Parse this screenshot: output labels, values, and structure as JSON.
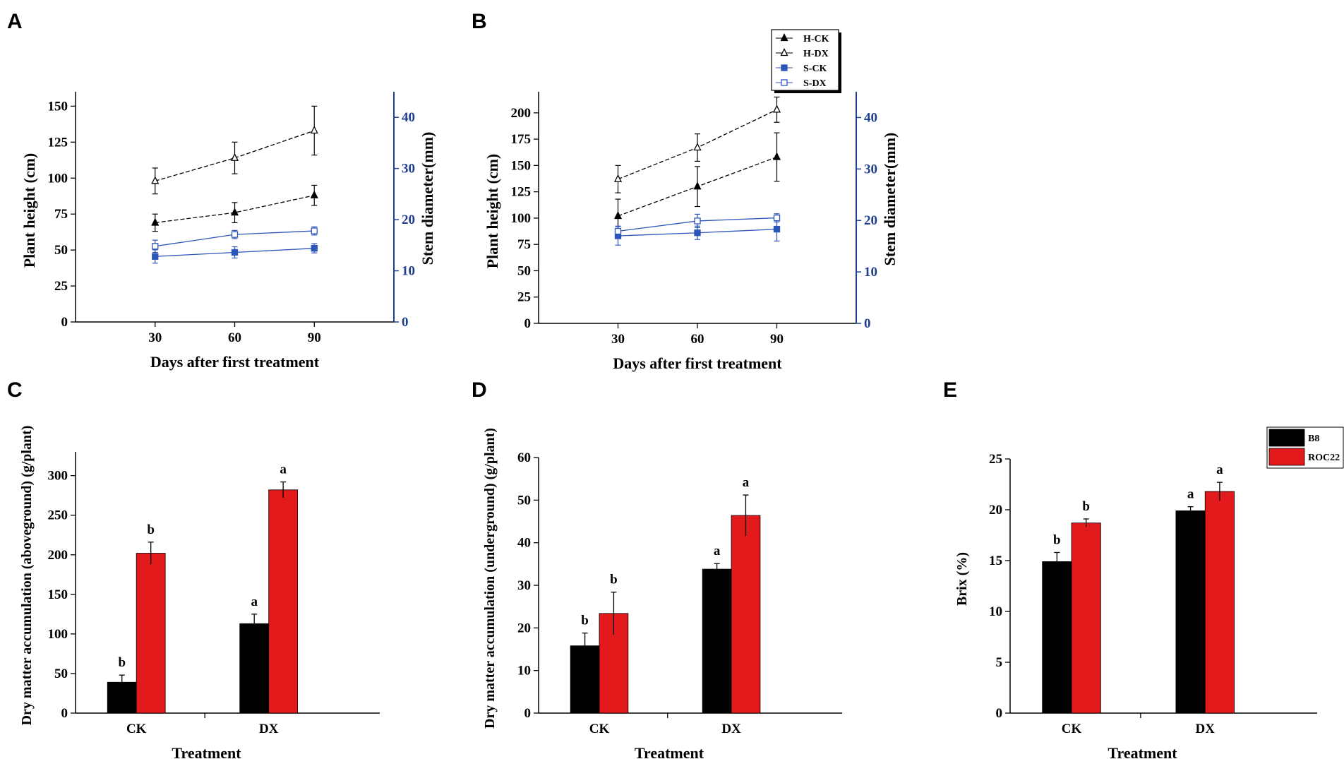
{
  "panels": {
    "A": "A",
    "B": "B",
    "C": "C",
    "D": "D",
    "E": "E"
  },
  "colors": {
    "black": "#000000",
    "blue": "#1f3f8f",
    "red": "#e31a1c",
    "light_blue": "#2c55b8"
  },
  "chart_data": [
    {
      "id": "A",
      "type": "line",
      "title": "",
      "xlabel": "Days after first treatment",
      "ylabel": "Plant height (cm)",
      "y2label": "Stem diameter(mm)",
      "x": [
        30,
        60,
        90
      ],
      "x_ticks": [
        "30",
        "60",
        "90"
      ],
      "xlim": [
        0,
        120
      ],
      "ylim": [
        0,
        160
      ],
      "y_ticks": [
        "0",
        "25",
        "50",
        "75",
        "100",
        "125",
        "150"
      ],
      "y2lim": [
        0,
        45
      ],
      "y2_ticks": [
        "0",
        "10",
        "20",
        "30",
        "40"
      ],
      "series": [
        {
          "name": "H-CK",
          "axis": "left",
          "marker": "filled-triangle",
          "values": [
            69,
            76,
            88
          ],
          "err": [
            6,
            7,
            7
          ]
        },
        {
          "name": "H-DX",
          "axis": "left",
          "marker": "open-triangle",
          "values": [
            98,
            114,
            133
          ],
          "err": [
            9,
            11,
            17
          ]
        },
        {
          "name": "S-CK",
          "axis": "right",
          "marker": "filled-square",
          "values": [
            12.8,
            13.6,
            14.4
          ],
          "err": [
            1.3,
            1.1,
            0.9
          ]
        },
        {
          "name": "S-DX",
          "axis": "right",
          "marker": "open-square",
          "values": [
            14.8,
            17.1,
            17.8
          ],
          "err": [
            1.2,
            0.8,
            0.8
          ]
        }
      ]
    },
    {
      "id": "B",
      "type": "line",
      "title": "",
      "xlabel": "Days after first treatment",
      "ylabel": "Plant height (cm)",
      "y2label": "Stem diameter(mm)",
      "x": [
        30,
        60,
        90
      ],
      "x_ticks": [
        "30",
        "60",
        "90"
      ],
      "xlim": [
        0,
        120
      ],
      "ylim": [
        0,
        220
      ],
      "y_ticks": [
        "0",
        "25",
        "50",
        "75",
        "100",
        "125",
        "150",
        "175",
        "200"
      ],
      "y2lim": [
        0,
        45
      ],
      "y2_ticks": [
        "0",
        "10",
        "20",
        "30",
        "40"
      ],
      "legend": [
        "H-CK",
        "H-DX",
        "S-CK",
        "S-DX"
      ],
      "legend_position": "top-right",
      "series": [
        {
          "name": "H-CK",
          "axis": "left",
          "marker": "filled-triangle",
          "values": [
            102,
            130,
            158
          ],
          "err": [
            16,
            19,
            23
          ]
        },
        {
          "name": "H-DX",
          "axis": "left",
          "marker": "open-triangle",
          "values": [
            137,
            167,
            203
          ],
          "err": [
            13,
            13,
            12
          ]
        },
        {
          "name": "S-CK",
          "axis": "right",
          "marker": "filled-square",
          "values": [
            17.0,
            17.6,
            18.3
          ],
          "err": [
            1.8,
            1.3,
            2.3
          ]
        },
        {
          "name": "S-DX",
          "axis": "right",
          "marker": "open-square",
          "values": [
            17.9,
            19.9,
            20.5
          ],
          "err": [
            1.0,
            1.3,
            0.8
          ]
        }
      ]
    },
    {
      "id": "C",
      "type": "bar",
      "xlabel": "Treatment",
      "ylabel": "Dry matter accumulation (aboveground) (g/plant)",
      "categories": [
        "CK",
        "DX"
      ],
      "ylim": [
        0,
        330
      ],
      "y_ticks": [
        "0",
        "50",
        "100",
        "150",
        "200",
        "250",
        "300"
      ],
      "series": [
        {
          "name": "B8",
          "color": "#000000",
          "values": [
            39,
            113
          ],
          "err": [
            9,
            12
          ],
          "letters": [
            "b",
            "a"
          ]
        },
        {
          "name": "ROC22",
          "color": "#e31a1c",
          "values": [
            202,
            282
          ],
          "err": [
            14,
            10
          ],
          "letters": [
            "b",
            "a"
          ]
        }
      ]
    },
    {
      "id": "D",
      "type": "bar",
      "xlabel": "Treatment",
      "ylabel": "Dry matter accumulation (underground) (g/plant)",
      "categories": [
        "CK",
        "DX"
      ],
      "ylim": [
        0,
        60
      ],
      "y_ticks": [
        "0",
        "10",
        "20",
        "30",
        "40",
        "50",
        "60"
      ],
      "series": [
        {
          "name": "B8",
          "color": "#000000",
          "values": [
            15.8,
            33.8
          ],
          "err": [
            3.0,
            1.3
          ],
          "letters": [
            "b",
            "a"
          ]
        },
        {
          "name": "ROC22",
          "color": "#e31a1c",
          "values": [
            23.4,
            46.4
          ],
          "err": [
            5.0,
            4.8
          ],
          "letters": [
            "b",
            "a"
          ]
        }
      ]
    },
    {
      "id": "E",
      "type": "bar",
      "xlabel": "Treatment",
      "ylabel": "Brix (%)",
      "categories": [
        "CK",
        "DX"
      ],
      "ylim": [
        0,
        25
      ],
      "y_ticks": [
        "0",
        "5",
        "10",
        "15",
        "20",
        "25"
      ],
      "legend": [
        "B8",
        "ROC22"
      ],
      "legend_position": "top-right",
      "series": [
        {
          "name": "B8",
          "color": "#000000",
          "values": [
            14.9,
            19.9
          ],
          "err": [
            0.9,
            0.4
          ],
          "letters": [
            "b",
            "a"
          ]
        },
        {
          "name": "ROC22",
          "color": "#e31a1c",
          "values": [
            18.7,
            21.8
          ],
          "err": [
            0.4,
            0.9
          ],
          "letters": [
            "b",
            "a"
          ]
        }
      ]
    }
  ]
}
